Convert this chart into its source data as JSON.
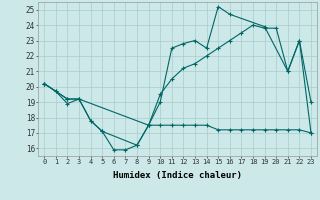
{
  "xlabel": "Humidex (Indice chaleur)",
  "bg_color": "#cce8e8",
  "grid_color": "#aacccc",
  "line_color": "#006666",
  "xlim": [
    -0.5,
    23.5
  ],
  "ylim": [
    15.5,
    25.5
  ],
  "xticks": [
    0,
    1,
    2,
    3,
    4,
    5,
    6,
    7,
    8,
    9,
    10,
    11,
    12,
    13,
    14,
    15,
    16,
    17,
    18,
    19,
    20,
    21,
    22,
    23
  ],
  "yticks": [
    16,
    17,
    18,
    19,
    20,
    21,
    22,
    23,
    24,
    25
  ],
  "line1_x": [
    0,
    1,
    2,
    3,
    4,
    5,
    6,
    7,
    8,
    9,
    10,
    11,
    12,
    13,
    14,
    15,
    16,
    17,
    18,
    19,
    20,
    21,
    22,
    23
  ],
  "line1_y": [
    20.2,
    19.7,
    18.9,
    19.2,
    17.8,
    17.1,
    15.9,
    15.9,
    16.2,
    17.5,
    17.5,
    17.5,
    17.5,
    17.5,
    17.5,
    17.2,
    17.2,
    17.2,
    17.2,
    17.2,
    17.2,
    17.2,
    17.2,
    17.0
  ],
  "line2_x": [
    0,
    1,
    2,
    3,
    4,
    5,
    8,
    9,
    10,
    11,
    12,
    13,
    14,
    15,
    16,
    19,
    21,
    22,
    23
  ],
  "line2_y": [
    20.2,
    19.7,
    19.2,
    19.2,
    17.8,
    17.1,
    16.2,
    17.5,
    19.0,
    22.5,
    22.8,
    23.0,
    22.5,
    25.2,
    24.7,
    23.9,
    21.0,
    23.0,
    19.0
  ],
  "line3_x": [
    0,
    2,
    3,
    9,
    10,
    11,
    12,
    13,
    14,
    15,
    16,
    17,
    18,
    19,
    20,
    21,
    22,
    23
  ],
  "line3_y": [
    20.2,
    19.2,
    19.2,
    17.5,
    19.5,
    20.5,
    21.2,
    21.5,
    22.0,
    22.5,
    23.0,
    23.5,
    24.0,
    23.8,
    23.8,
    21.0,
    23.0,
    17.0
  ]
}
